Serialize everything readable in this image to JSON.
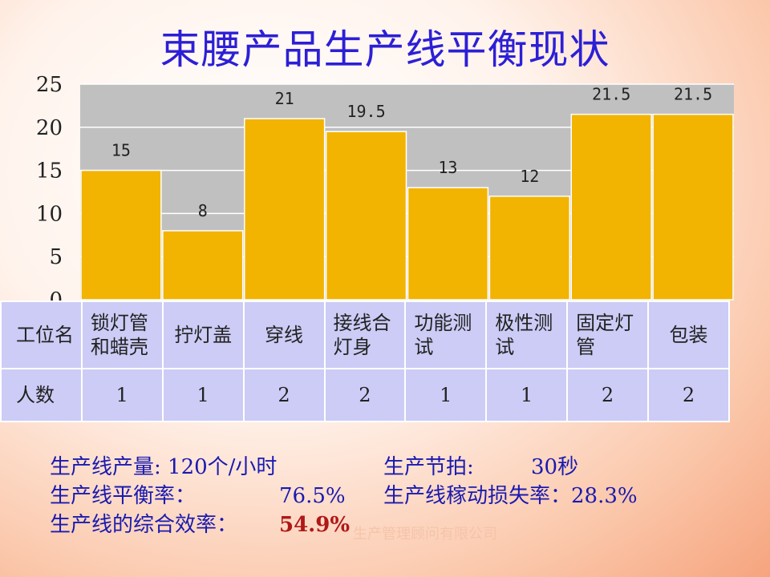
{
  "title": "束腰产品生产线平衡现状",
  "chart_data": {
    "type": "bar",
    "categories": [
      "锁灯管和蜡壳",
      "拧灯盖",
      "穿线",
      "接线合灯身",
      "功能测试",
      "极性测试",
      "固定灯管",
      "包装"
    ],
    "values": [
      15,
      8,
      21,
      19.5,
      13,
      12,
      21.5,
      21.5
    ],
    "value_labels": [
      "15",
      "8",
      "21",
      "19.5",
      "13",
      "12",
      "21.5",
      "21.5"
    ],
    "ylim": [
      0,
      25
    ],
    "yticks": [
      "0",
      "5",
      "10",
      "15",
      "20",
      "25"
    ],
    "grid": true,
    "colors": {
      "bar": "#f2b400",
      "plot_bg": "#c0c0c0",
      "grid": "#ffffff"
    }
  },
  "table": {
    "header_label": "工位名",
    "stations": [
      [
        "锁灯管",
        "和蜡壳"
      ],
      [
        "拧灯盖"
      ],
      [
        "穿线"
      ],
      [
        "接线合",
        "灯身"
      ],
      [
        "功能测",
        "试"
      ],
      [
        "极性测",
        "试"
      ],
      [
        "固定灯",
        "管"
      ],
      [
        "包装"
      ]
    ],
    "count_label": "人数",
    "counts": [
      "1",
      "1",
      "2",
      "2",
      "1",
      "1",
      "2",
      "2"
    ]
  },
  "stats": {
    "output_label": "生产线产量: 120个/小时",
    "takt_label": "生产节拍:",
    "takt_value": "30秒",
    "balance_label": "生产线平衡率：",
    "balance_value": "76.5%",
    "loss_label": "生产线稼动损失率：28.3%",
    "efficiency_label": "生产线的综合效率：",
    "efficiency_value": "54.9%"
  },
  "watermark": "生产管理顾问有限公司"
}
